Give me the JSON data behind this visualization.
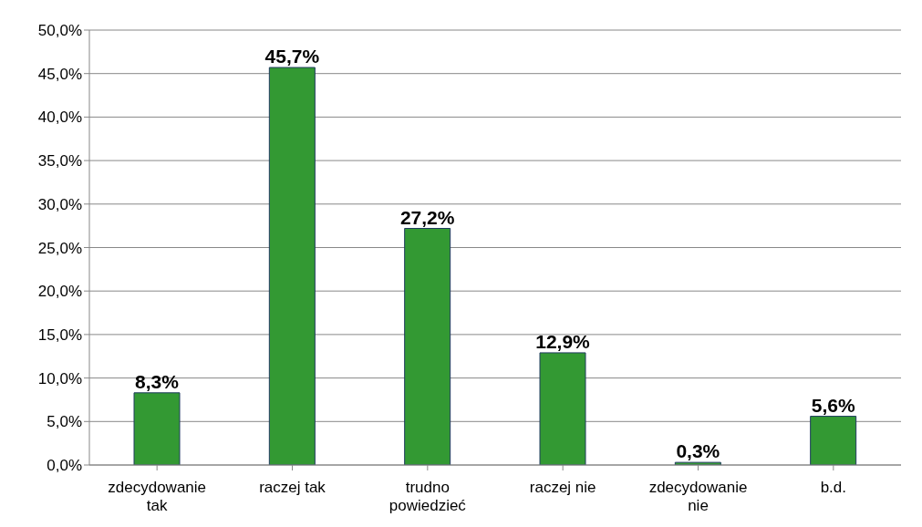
{
  "chart_data": {
    "type": "bar",
    "categories": [
      "zdecydowanie tak",
      "raczej tak",
      "trudno powiedzieć",
      "raczej nie",
      "zdecydowanie nie",
      "b.d."
    ],
    "values": [
      8.3,
      45.7,
      27.2,
      12.9,
      0.3,
      5.6
    ],
    "value_labels": [
      "8,3%",
      "45,7%",
      "27,2%",
      "12,9%",
      "0,3%",
      "5,6%"
    ],
    "color": "#339933",
    "ylim": [
      0,
      50
    ],
    "yticks": [
      {
        "value": 0,
        "label": "0,0%"
      },
      {
        "value": 5,
        "label": "5,0%"
      },
      {
        "value": 10,
        "label": "10,0%"
      },
      {
        "value": 15,
        "label": "15,0%"
      },
      {
        "value": 20,
        "label": "20,0%"
      },
      {
        "value": 25,
        "label": "25,0%"
      },
      {
        "value": 30,
        "label": "30,0%"
      },
      {
        "value": 35,
        "label": "35,0%"
      },
      {
        "value": 40,
        "label": "40,0%"
      },
      {
        "value": 45,
        "label": "45,0%"
      },
      {
        "value": 50,
        "label": "50,0%"
      }
    ],
    "grid": "y"
  }
}
